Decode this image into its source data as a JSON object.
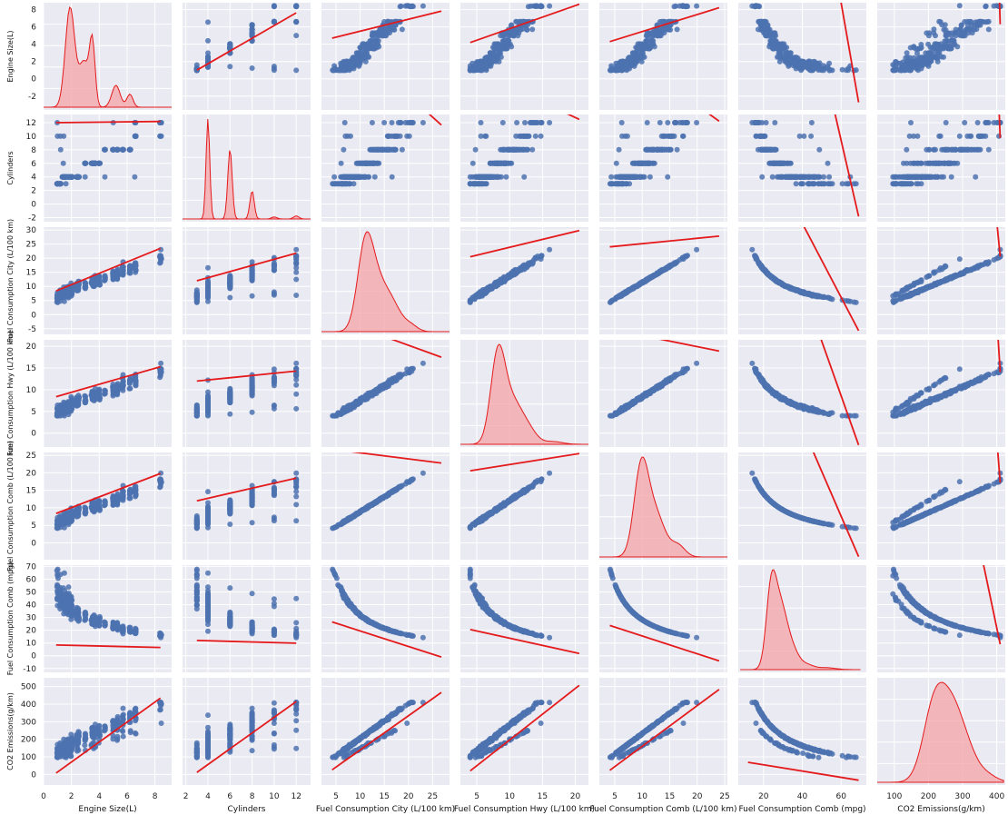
{
  "chart_data": {
    "type": "scatter",
    "variables": [
      {
        "label": "Engine Size(L)",
        "xticks": [
          0,
          2,
          4,
          6,
          8
        ],
        "yticks": [
          -2,
          0,
          2,
          4,
          6,
          8
        ],
        "xlim": [
          0,
          9.2
        ],
        "ylim": [
          -3.6,
          8.8
        ]
      },
      {
        "label": "Cylinders",
        "xticks": [
          2,
          4,
          6,
          8,
          10,
          12
        ],
        "yticks": [
          -2,
          0,
          2,
          4,
          6,
          8,
          10,
          12
        ],
        "xlim": [
          1.7,
          13.3
        ],
        "ylim": [
          -2.6,
          13.2
        ]
      },
      {
        "label": "Fuel Consumption City (L/100 km)",
        "xticks": [
          5,
          10,
          15,
          20,
          25
        ],
        "yticks": [
          -5,
          0,
          5,
          10,
          15,
          20,
          25,
          30
        ],
        "xlim": [
          2,
          28.5
        ],
        "ylim": [
          -7,
          31
        ]
      },
      {
        "label": "Fuel Consumption Hwy (L/100 km)",
        "xticks": [
          5,
          10,
          15,
          20
        ],
        "yticks": [
          0,
          5,
          10,
          15,
          20
        ],
        "xlim": [
          2.5,
          22
        ],
        "ylim": [
          -3.2,
          21.5
        ]
      },
      {
        "label": "Fuel Consumption Comb (L/100 km)",
        "xticks": [
          5,
          10,
          15,
          20,
          25
        ],
        "yticks": [
          0,
          5,
          10,
          15,
          20,
          25
        ],
        "xlim": [
          2.2,
          25.5
        ],
        "ylim": [
          -4.8,
          25.8
        ]
      },
      {
        "label": "Fuel Consumption Comb (mpg)",
        "xticks": [
          20,
          40,
          60
        ],
        "yticks": [
          -10,
          0,
          10,
          20,
          30,
          40,
          50,
          60,
          70
        ],
        "xlim": [
          7,
          73
        ],
        "ylim": [
          -13,
          71
        ]
      },
      {
        "label": "CO2 Emissions(g/km)",
        "xticks": [
          100,
          200,
          300,
          400
        ],
        "yticks": [
          0,
          100,
          200,
          300,
          400,
          500
        ],
        "xlim": [
          50,
          425
        ],
        "ylim": [
          -60,
          550
        ]
      }
    ],
    "ranges": [
      [
        0.9,
        8.4
      ],
      [
        3,
        12
      ],
      [
        4.2,
        26.8
      ],
      [
        4,
        20.6
      ],
      [
        4.1,
        24
      ],
      [
        12,
        69
      ],
      [
        96,
        410
      ]
    ],
    "diagonal": {
      "peaks": [
        [
          [
            1.9,
            1.0,
            0.34
          ],
          [
            2.9,
            0.45,
            0.35
          ],
          [
            3.5,
            0.62,
            0.2
          ],
          [
            5.2,
            0.22,
            0.3
          ],
          [
            6.2,
            0.13,
            0.22
          ]
        ],
        [
          [
            4,
            1.0,
            0.17
          ],
          [
            6,
            0.7,
            0.2
          ],
          [
            8,
            0.28,
            0.2
          ],
          [
            10,
            0.02,
            0.25
          ],
          [
            12,
            0.03,
            0.25
          ]
        ],
        [
          [
            11,
            0.85,
            1.6
          ],
          [
            13.5,
            0.55,
            2.2
          ],
          [
            17,
            0.22,
            1.8
          ],
          [
            20.5,
            0.07,
            1.4
          ]
        ],
        [
          [
            8.2,
            0.95,
            1.1
          ],
          [
            10.5,
            0.45,
            1.5
          ],
          [
            13,
            0.12,
            1.2
          ],
          [
            16.5,
            0.03,
            1.5
          ]
        ],
        [
          [
            9.8,
            0.9,
            1.3
          ],
          [
            12.4,
            0.45,
            1.7
          ],
          [
            16.5,
            0.12,
            1.3
          ]
        ],
        [
          [
            24,
            0.8,
            2.6
          ],
          [
            29,
            0.6,
            3.3
          ],
          [
            35,
            0.18,
            3.2
          ],
          [
            42,
            0.05,
            3.5
          ],
          [
            52,
            0.02,
            5
          ]
        ],
        [
          [
            215,
            0.8,
            32
          ],
          [
            265,
            0.72,
            34
          ],
          [
            310,
            0.3,
            32
          ],
          [
            370,
            0.08,
            30
          ]
        ]
      ],
      "x_extent": [
        [
          -0.5,
          9.2
        ],
        [
          1.5,
          13.3
        ],
        [
          2,
          28.5
        ],
        [
          2.5,
          22
        ],
        [
          2.2,
          25.5
        ],
        [
          8,
          70
        ],
        [
          50,
          420
        ]
      ],
      "color": "#e41a1c",
      "fill": "#f4a3a5"
    },
    "regression_lines": [
      [
        null,
        [
          1,
          7.63
        ],
        [
          4.7,
          7.83
        ],
        [
          4.2,
          8.63
        ],
        [
          4.3,
          8.22
        ],
        [
          70,
          -2.72
        ],
        [
          410,
          6.31
        ]
      ],
      [
        [
          12,
          12.17
        ],
        null,
        [
          26.2,
          11.65
        ],
        [
          20,
          12.48
        ],
        [
          23.9,
          12.21
        ],
        [
          69,
          -1.82
        ],
        [
          410,
          9.75
        ]
      ],
      [
        [
          8.4,
          23.5
        ],
        [
          12,
          21.8
        ],
        null,
        [
          20.5,
          29.8
        ],
        [
          24,
          27.8
        ],
        [
          69,
          -5.67
        ],
        [
          410,
          20.6
        ]
      ],
      [
        [
          8.4,
          15.3
        ],
        [
          12,
          14.3
        ],
        [
          26.6,
          17.5
        ],
        null,
        [
          24,
          18.9
        ],
        [
          69,
          -2.73
        ],
        [
          410,
          14.05
        ]
      ],
      [
        [
          8.4,
          19.8
        ],
        [
          12,
          18.5
        ],
        [
          26.7,
          22.8
        ],
        [
          20.6,
          25.5
        ],
        null,
        [
          69,
          -3.91
        ],
        [
          410,
          17.2
        ]
      ],
      [
        [
          8.4,
          6.5
        ],
        [
          12,
          9.84
        ],
        [
          26.5,
          -0.96
        ],
        [
          20.5,
          1.8
        ],
        [
          23.7,
          -4.02
        ],
        null,
        [
          410,
          8.99
        ]
      ],
      [
        [
          8.4,
          434.5
        ],
        [
          12,
          415.3
        ],
        [
          26.5,
          466.7
        ],
        [
          20.5,
          507
        ],
        [
          24,
          484
        ],
        [
          69,
          -32.6
        ],
        null
      ]
    ],
    "point_color": "#4c72b0",
    "line_color": "#e41a1c",
    "grid": true
  }
}
